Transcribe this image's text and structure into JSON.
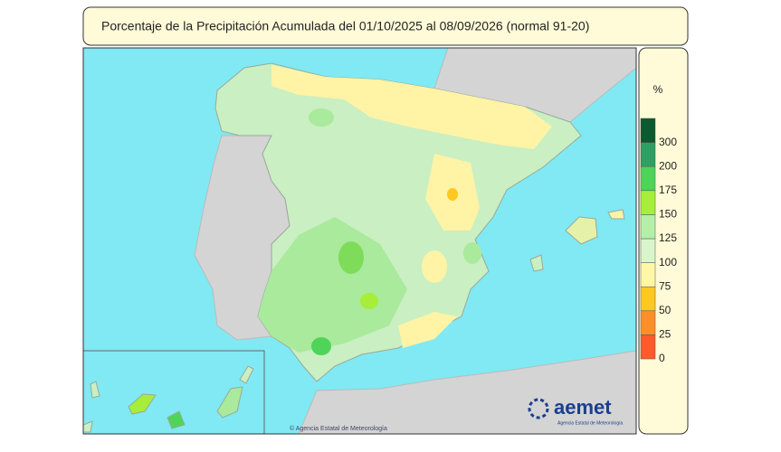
{
  "header": {
    "title": "Porcentaje de la Precipitación Acumulada del 01/10/2025 al 08/09/2026 (normal 91-20)"
  },
  "legend": {
    "unit": "%",
    "ticks": [
      0,
      25,
      50,
      75,
      100,
      125,
      150,
      175,
      200,
      300
    ],
    "colors": [
      "#ff5a2a",
      "#ff8f2a",
      "#ffc820",
      "#fff6a8",
      "#d8f5cc",
      "#b4efa8",
      "#a6ee3a",
      "#4fd45a",
      "#2f9f63",
      "#0b5a30"
    ]
  },
  "credits": {
    "source": "© Agencia Estatal de Meteorología",
    "logo": "aemet",
    "logo_subtitle": "Agencia Estatal de Meteorología"
  }
}
